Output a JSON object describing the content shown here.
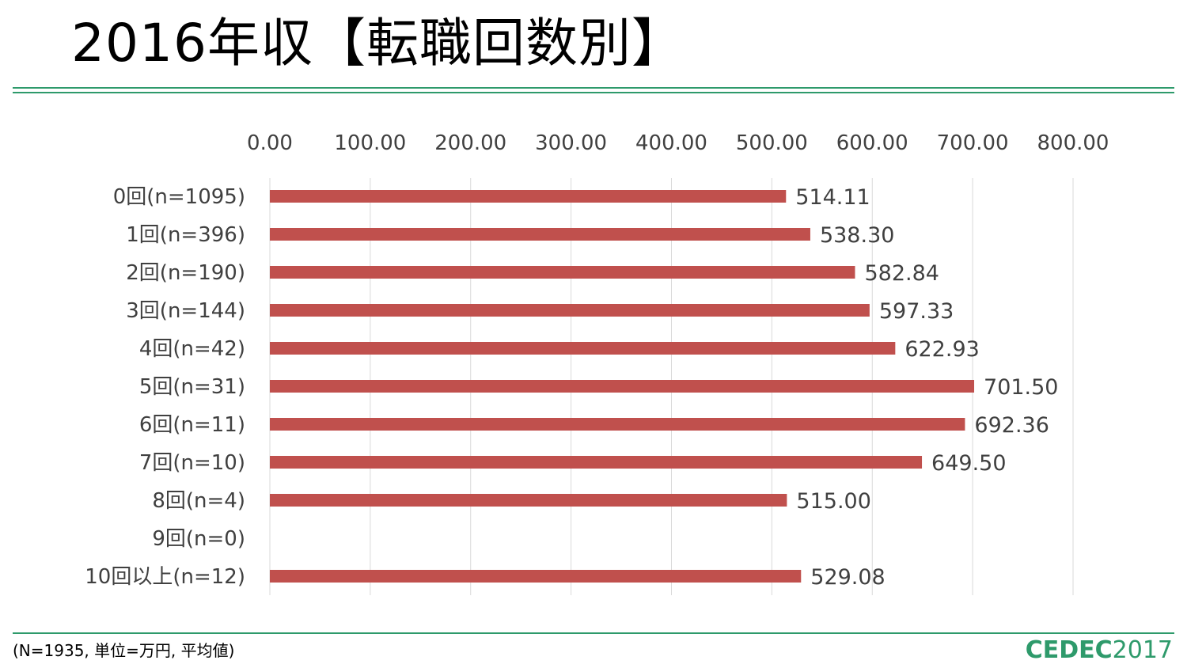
{
  "page": {
    "title": "2016年収【転職回数別】",
    "footnote": "(N=1935, 単位=万円, 平均値)",
    "logo": {
      "brand": "CEDEC",
      "year": "2017"
    }
  },
  "colors": {
    "bar": "#c0504d",
    "accent": "#2e9a6b",
    "grid": "#d9d9d9",
    "text": "#404040"
  },
  "chart_data": {
    "type": "bar",
    "orientation": "horizontal",
    "categories": [
      "0回(n=1095)",
      "1回(n=396)",
      "2回(n=190)",
      "3回(n=144)",
      "4回(n=42)",
      "5回(n=31)",
      "6回(n=11)",
      "7回(n=10)",
      "8回(n=4)",
      "9回(n=0)",
      "10回以上(n=12)"
    ],
    "values": [
      514.11,
      538.3,
      582.84,
      597.33,
      622.93,
      701.5,
      692.36,
      649.5,
      515.0,
      null,
      529.08
    ],
    "data_labels": [
      "514.11",
      "538.30",
      "582.84",
      "597.33",
      "622.93",
      "701.50",
      "692.36",
      "649.50",
      "515.00",
      "",
      "529.08"
    ],
    "xlim": [
      0,
      800
    ],
    "ticks": [
      0,
      100,
      200,
      300,
      400,
      500,
      600,
      700,
      800
    ],
    "tick_labels": [
      "0.00",
      "100.00",
      "200.00",
      "300.00",
      "400.00",
      "500.00",
      "600.00",
      "700.00",
      "800.00"
    ],
    "axis_position": "top",
    "grid": true,
    "legend": "none"
  }
}
